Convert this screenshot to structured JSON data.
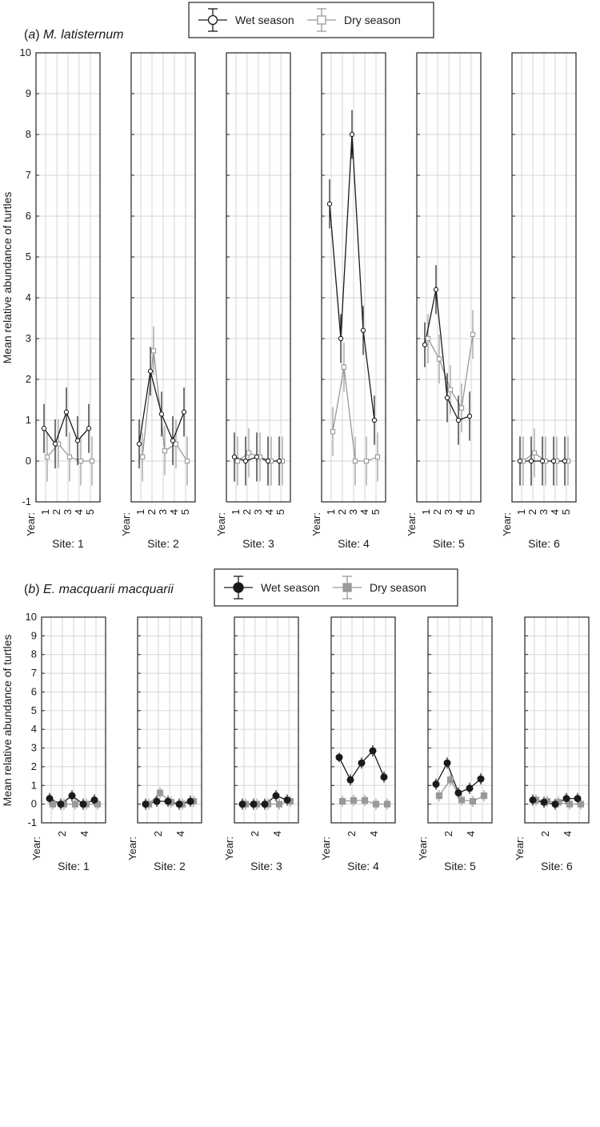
{
  "chart_data": [
    {
      "type": "line",
      "panel_label": "(a)",
      "species": "M. latisternum",
      "ylabel": "Mean relative abundance of turtles",
      "ylim": [
        -1,
        10
      ],
      "yticks": [
        -1,
        0,
        1,
        2,
        3,
        4,
        5,
        6,
        7,
        8,
        9,
        10
      ],
      "year_label": "Year:",
      "x": [
        1,
        2,
        3,
        4,
        5
      ],
      "xticks": [
        "1",
        "2",
        "3",
        "4",
        "5"
      ],
      "marker": "open",
      "legend": [
        {
          "name": "Wet season",
          "color": "#1a1a1a"
        },
        {
          "name": "Dry season",
          "color": "#999999"
        }
      ],
      "grid": true,
      "sites": [
        {
          "label": "Site: 1",
          "wet": [
            0.8,
            0.42,
            1.2,
            0.5,
            0.8
          ],
          "wet_err": [
            0.6,
            0.6,
            0.6,
            0.6,
            0.6
          ],
          "dry": [
            0.1,
            0.42,
            0.1,
            0.0,
            0.0
          ],
          "dry_err": [
            0.6,
            0.6,
            0.6,
            0.6,
            0.6
          ]
        },
        {
          "label": "Site: 2",
          "wet": [
            0.42,
            2.2,
            1.15,
            0.5,
            1.2
          ],
          "wet_err": [
            0.6,
            0.6,
            0.55,
            0.6,
            0.6
          ],
          "dry": [
            0.1,
            2.7,
            0.25,
            0.42,
            0.0
          ],
          "dry_err": [
            0.6,
            0.6,
            0.6,
            0.6,
            0.6
          ]
        },
        {
          "label": "Site: 3",
          "wet": [
            0.1,
            0.0,
            0.1,
            0.0,
            0.0
          ],
          "wet_err": [
            0.6,
            0.6,
            0.6,
            0.6,
            0.6
          ],
          "dry": [
            0.0,
            0.2,
            0.1,
            0.0,
            0.0
          ],
          "dry_err": [
            0.6,
            0.6,
            0.6,
            0.6,
            0.6
          ]
        },
        {
          "label": "Site: 4",
          "wet": [
            6.3,
            3.0,
            8.0,
            3.2,
            1.0
          ],
          "wet_err": [
            0.6,
            0.6,
            0.6,
            0.6,
            0.6
          ],
          "dry": [
            0.72,
            2.3,
            0.0,
            0.0,
            0.1
          ],
          "dry_err": [
            0.6,
            0.6,
            0.6,
            0.6,
            0.6
          ]
        },
        {
          "label": "Site: 5",
          "wet": [
            2.85,
            4.2,
            1.55,
            1.0,
            1.1
          ],
          "wet_err": [
            0.55,
            0.6,
            0.6,
            0.6,
            0.6
          ],
          "dry": [
            3.0,
            2.5,
            1.75,
            1.3,
            3.1
          ],
          "dry_err": [
            0.6,
            0.6,
            0.6,
            0.6,
            0.6
          ]
        },
        {
          "label": "Site: 6",
          "wet": [
            0.0,
            0.0,
            0.0,
            0.0,
            0.0
          ],
          "wet_err": [
            0.6,
            0.6,
            0.6,
            0.6,
            0.6
          ],
          "dry": [
            0.0,
            0.2,
            0.0,
            0.0,
            0.0
          ],
          "dry_err": [
            0.6,
            0.6,
            0.6,
            0.6,
            0.6
          ]
        }
      ]
    },
    {
      "type": "line",
      "panel_label": "(b)",
      "species": "E. macquarii macquarii",
      "ylabel": "Mean relative abundance of turtles",
      "ylim": [
        -1,
        10
      ],
      "yticks": [
        -1,
        0,
        1,
        2,
        3,
        4,
        5,
        6,
        7,
        8,
        9,
        10
      ],
      "year_label": "Year:",
      "x": [
        1,
        2,
        3,
        4,
        5
      ],
      "xticks": [
        "",
        "2",
        "",
        "4",
        ""
      ],
      "marker": "filled",
      "legend": [
        {
          "name": "Wet season",
          "color": "#1a1a1a"
        },
        {
          "name": "Dry season",
          "color": "#999999"
        }
      ],
      "grid": true,
      "sites": [
        {
          "label": "Site: 1",
          "wet": [
            0.3,
            0.0,
            0.45,
            0.0,
            0.22
          ],
          "wet_err": [
            0.3,
            0.3,
            0.3,
            0.3,
            0.3
          ],
          "dry": [
            0.0,
            0.0,
            0.0,
            0.0,
            0.0
          ],
          "dry_err": [
            0.3,
            0.3,
            0.3,
            0.3,
            0.3
          ]
        },
        {
          "label": "Site: 2",
          "wet": [
            0.0,
            0.15,
            0.15,
            0.0,
            0.15
          ],
          "wet_err": [
            0.3,
            0.3,
            0.3,
            0.3,
            0.3
          ],
          "dry": [
            0.0,
            0.6,
            0.1,
            0.0,
            0.15
          ],
          "dry_err": [
            0.3,
            0.3,
            0.3,
            0.3,
            0.3
          ]
        },
        {
          "label": "Site: 3",
          "wet": [
            0.0,
            0.0,
            0.0,
            0.45,
            0.22
          ],
          "wet_err": [
            0.3,
            0.3,
            0.3,
            0.3,
            0.3
          ],
          "dry": [
            0.0,
            0.0,
            0.0,
            0.0,
            0.15
          ],
          "dry_err": [
            0.3,
            0.3,
            0.3,
            0.3,
            0.3
          ]
        },
        {
          "label": "Site: 4",
          "wet": [
            2.5,
            1.3,
            2.2,
            2.85,
            1.45
          ],
          "wet_err": [
            0.25,
            0.3,
            0.3,
            0.3,
            0.3
          ],
          "dry": [
            0.15,
            0.2,
            0.2,
            0.0,
            0.0
          ],
          "dry_err": [
            0.3,
            0.3,
            0.3,
            0.3,
            0.3
          ]
        },
        {
          "label": "Site: 5",
          "wet": [
            1.07,
            2.2,
            0.6,
            0.85,
            1.35
          ],
          "wet_err": [
            0.3,
            0.3,
            0.3,
            0.3,
            0.3
          ],
          "dry": [
            0.45,
            1.3,
            0.22,
            0.15,
            0.45
          ],
          "dry_err": [
            0.3,
            0.3,
            0.3,
            0.3,
            0.3
          ]
        },
        {
          "label": "Site: 6",
          "wet": [
            0.22,
            0.1,
            0.0,
            0.3,
            0.3
          ],
          "wet_err": [
            0.3,
            0.3,
            0.3,
            0.3,
            0.3
          ],
          "dry": [
            0.22,
            0.15,
            0.1,
            0.0,
            0.0
          ],
          "dry_err": [
            0.3,
            0.3,
            0.3,
            0.3,
            0.3
          ]
        }
      ]
    }
  ]
}
